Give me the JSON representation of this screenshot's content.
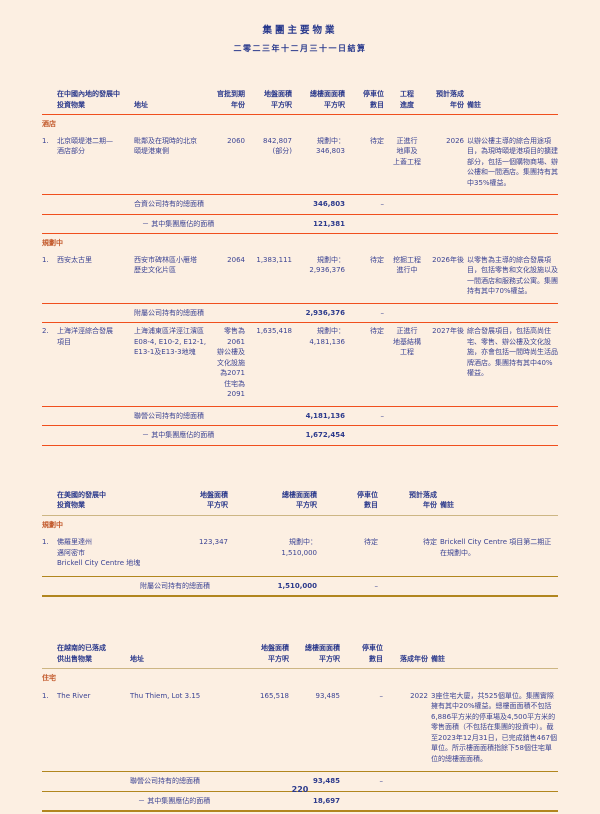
{
  "page": {
    "title": "集團主要物業",
    "subtitle": "二零二三年十二月三十一日結算",
    "page_number": "220"
  },
  "colors": {
    "background": "#fcefe2",
    "navy_text": "#2c3a8c",
    "accent_orange": "#f04f1d",
    "accent_gold": "#b1861e",
    "section_label": "#c2592b"
  },
  "china": {
    "headers": [
      "在中國內地的發展中\n投資物業",
      "地址",
      "官批到期\n年份",
      "地盤面積\n平方呎",
      "總樓面面積\n平方呎",
      "停車位\n數目",
      "工程\n進度",
      "預計落成\n年份",
      "備註"
    ],
    "section_hotel": "酒店",
    "section_planning": "規劃中",
    "rows": {
      "indigo": {
        "num": "1.",
        "name": "北京頤堤港二期—\n酒店部分",
        "address": "毗鄰及在現時的北京\n頤堤港東側",
        "lease": "2060",
        "site": "842,807\n(部分)",
        "gfa": "規劃中：\n346,803",
        "carpark": "待定",
        "works": "正進行\n地庫及\n上蓋工程",
        "year": "2026",
        "remarks": "以辦公樓主導的綜合用途項目，為現時頤堤港項目的擴建部分，包括一個購物商場、辦公樓和一間酒店。集團持有其中35%權益。"
      },
      "xian": {
        "num": "1.",
        "name": "西安太古里",
        "address": "西安市碑林區小雁塔\n歷史文化片區",
        "lease": "2064",
        "site": "1,383,111",
        "gfa": "規劃中：\n2,936,376",
        "carpark": "待定",
        "works": "挖掘工程\n進行中",
        "year": "2026年後",
        "remarks": "以零售為主導的綜合發展項目，包括零售和文化設施以及一間酒店和服務式公寓。集團持有其中70%權益。"
      },
      "shanghai": {
        "num": "2.",
        "name": "上海洋涇綜合發展\n項目",
        "address": "上海浦東區洋涇江濱區\nE08-4, E10-2, E12-1,\nE13-1及E13-3地塊",
        "lease": "零售為\n2061\n辦公樓及\n文化設施\n為2071\n住宅為\n2091",
        "site": "1,635,418",
        "gfa": "規劃中：\n4,181,136",
        "carpark": "待定",
        "works": "正進行\n地基結構\n工程",
        "year": "2027年後",
        "remarks": "綜合發展項目，包括高尚住宅、零售、辦公樓及文化設施，亦會包括一間時尚生活品牌酒店。集團持有其中40%權益。"
      }
    },
    "totals": {
      "jv": {
        "label": "合資公司持有的總面積",
        "value": "346,803",
        "carpark": "–"
      },
      "jv_share": {
        "label": "－ 其中集團應佔的面積",
        "value": "121,381"
      },
      "subsidiary": {
        "label": "附屬公司持有的總面積",
        "value": "2,936,376",
        "carpark": "–"
      },
      "associate": {
        "label": "聯營公司持有的總面積",
        "value": "4,181,136",
        "carpark": "–"
      },
      "associate_share": {
        "label": "－ 其中集團應佔的面積",
        "value": "1,672,454"
      }
    }
  },
  "usa": {
    "headers": [
      "在美國的發展中\n投資物業",
      "地盤面積\n平方呎",
      "總樓面面積\n平方呎",
      "停車位\n數目",
      "預計落成\n年份",
      "備註"
    ],
    "section_planning": "規劃中",
    "rows": {
      "brickell": {
        "num": "1.",
        "name": "佛羅里達州\n邁阿密市\nBrickell City Centre 地塊",
        "site": "123,347",
        "gfa": "規劃中：\n1,510,000",
        "carpark": "待定",
        "year": "待定",
        "remarks": "Brickell City Centre 項目第二期正在規劃中。"
      }
    },
    "totals": {
      "subsidiary": {
        "label": "附屬公司持有的總面積",
        "value": "1,510,000",
        "carpark": "–"
      }
    }
  },
  "vietnam": {
    "headers": [
      "在越南的已落成\n供出售物業",
      "地址",
      "地盤面積\n平方呎",
      "總樓面面積\n平方呎",
      "停車位\n數目",
      "落成年份",
      "備註"
    ],
    "section_residential": "住宅",
    "rows": {
      "the_river": {
        "num": "1.",
        "name": "The River",
        "address": "Thu Thiem, Lot 3.15",
        "site": "165,518",
        "gfa": "93,485",
        "carpark": "–",
        "year": "2022",
        "remarks": "3座住宅大廈，共525個單位。集團實際擁有其中20%權益。總樓面面積不包括6,886平方米的停車場及4,500平方米的零售面積（不包括在集團的投資中）。截至2023年12月31日，已完成銷售467個單位。所示樓面面積指餘下58個住宅單位的總樓面面積。"
      }
    },
    "totals": {
      "associate": {
        "label": "聯營公司持有的總面積",
        "value": "93,485",
        "carpark": "–"
      },
      "associate_share": {
        "label": "－ 其中集團應佔的面積",
        "value": "18,697"
      }
    }
  }
}
